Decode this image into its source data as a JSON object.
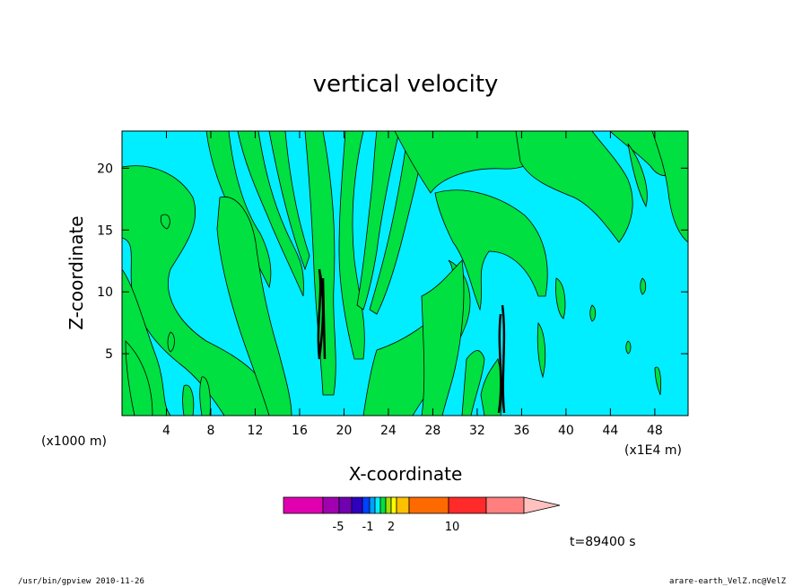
{
  "chart_data": {
    "type": "heatmap",
    "title": "vertical velocity",
    "xlabel": "X-coordinate",
    "ylabel": "Z-coordinate",
    "x_unit_left": "(x1000 m)",
    "x_unit_right": "(x1E4 m)",
    "xticks": [
      "4",
      "8",
      "12",
      "16",
      "20",
      "24",
      "28",
      "32",
      "36",
      "40",
      "44",
      "48"
    ],
    "xtick_values": [
      4,
      8,
      12,
      16,
      20,
      24,
      28,
      32,
      36,
      40,
      44,
      48
    ],
    "yticks": [
      "5",
      "10",
      "15",
      "20"
    ],
    "ytick_values": [
      5,
      10,
      15,
      20
    ],
    "xlim": [
      0,
      51
    ],
    "ylim": [
      0,
      23
    ],
    "background_color": "#00eeff",
    "colorbar": {
      "colors": [
        "#e000b0",
        "#a000b0",
        "#7000b0",
        "#3000c0",
        "#0040ff",
        "#00a0ff",
        "#00eeff",
        "#00e040",
        "#a0e000",
        "#ffff00",
        "#ffc000",
        "#ff6a00",
        "#ff2a2a",
        "#ff7f7f",
        "#ffc0c0"
      ],
      "labels": [
        "-5",
        "-1",
        "2",
        "10"
      ]
    },
    "time_label": "t=89400 s"
  },
  "footer": {
    "left": "/usr/bin/gpview  2010-11-26",
    "right": "arare-earth_VelZ.nc@VelZ"
  }
}
